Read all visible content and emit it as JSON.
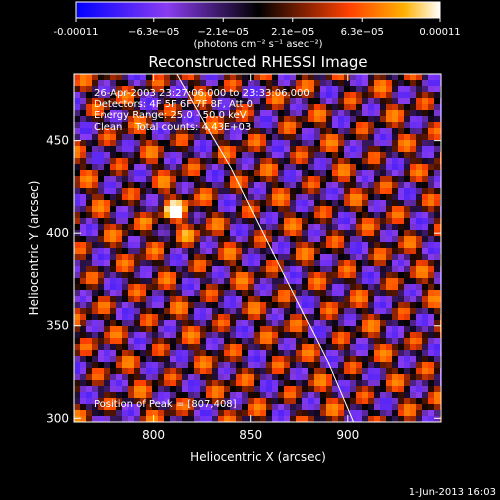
{
  "chart_data": {
    "type": "heatmap",
    "title": "Reconstructed RHESSI Image",
    "xlabel": "Heliocentric X (arcsec)",
    "ylabel": "Heliocentric Y (arcsec)",
    "xlim": [
      759,
      948
    ],
    "ylim": [
      298,
      486
    ],
    "x_ticks": [
      {
        "value": 800,
        "label": "800"
      },
      {
        "value": 850,
        "label": "850"
      },
      {
        "value": 900,
        "label": "900"
      }
    ],
    "y_ticks": [
      {
        "value": 300,
        "label": "300"
      },
      {
        "value": 350,
        "label": "350"
      },
      {
        "value": 400,
        "label": "400"
      },
      {
        "value": 450,
        "label": "450"
      }
    ],
    "colorbar": {
      "min": -0.00011,
      "max": 0.00011,
      "unit_label": "(photons cm⁻² s⁻¹ asec⁻²)",
      "tick_labels": [
        {
          "value": -0.00011,
          "label": "-0.00011"
        },
        {
          "value": -6.3e-05,
          "label": "−6.3e−05"
        },
        {
          "value": -2.1e-05,
          "label": "−2.1e−05"
        },
        {
          "value": 2.1e-05,
          "label": "2.1e−05"
        },
        {
          "value": 6.3e-05,
          "label": "6.3e−05"
        },
        {
          "value": 0.00011,
          "label": "0.00011"
        }
      ]
    },
    "annotations": [
      "26-Apr-2003 23:27:06.000 to 23:33:06.000",
      "Detectors: 4F 5F 6F 7F 8F, Att 0",
      "Energy Range: 25.0 - 50.0 keV",
      "Clean    Total counts: 4.43E+03"
    ],
    "peak_label": "Position of Peak = [807,408]",
    "peak": [
      807,
      408
    ],
    "limb_curve": {
      "x": [
        812,
        826,
        840,
        854,
        866,
        878,
        890,
        903
      ],
      "y": [
        486,
        460,
        435,
        405,
        380,
        355,
        330,
        298
      ]
    },
    "grid": false
  },
  "footer": {
    "date": "1-Jun-2013 16:03"
  }
}
